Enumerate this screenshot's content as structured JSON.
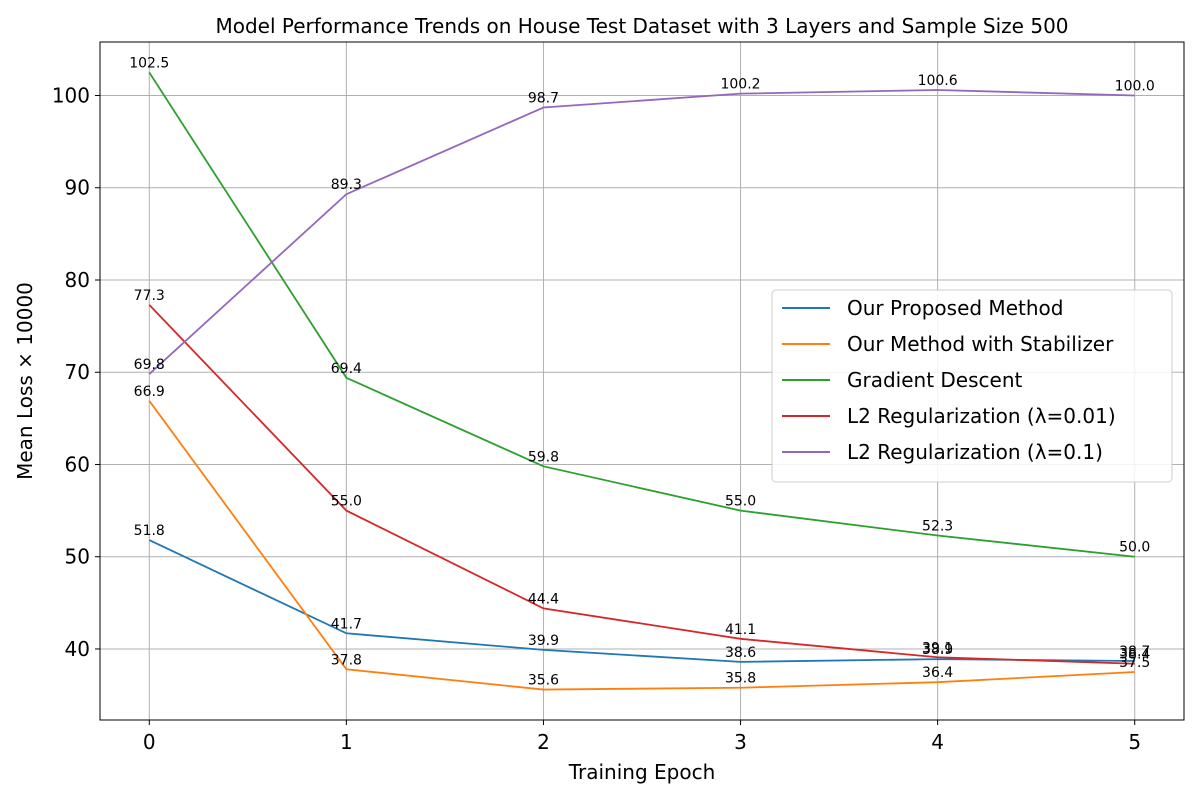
{
  "chart_data": {
    "type": "line",
    "title": "Model Performance Trends on House Test Dataset with 3 Layers and Sample Size 500",
    "xlabel": "Training Epoch",
    "ylabel": "Mean Loss × 10000",
    "x": [
      0,
      1,
      2,
      3,
      4,
      5
    ],
    "xlim": [
      -0.25,
      5.25
    ],
    "ylim": [
      32.3,
      105.8
    ],
    "xticks": [
      "0",
      "1",
      "2",
      "3",
      "4",
      "5"
    ],
    "yticks": [
      40,
      50,
      60,
      70,
      80,
      90,
      100
    ],
    "grid": true,
    "legend_position": "center-right",
    "series": [
      {
        "name": "Our Proposed Method",
        "color": "#1f77b4",
        "values": [
          51.8,
          41.7,
          39.9,
          38.6,
          38.9,
          38.7
        ],
        "labels": [
          "51.8",
          "41.7",
          "39.9",
          "38.6",
          "38.9",
          "38.7"
        ]
      },
      {
        "name": "Our Method with Stabilizer",
        "color": "#ff7f0e",
        "values": [
          66.9,
          37.8,
          35.6,
          35.8,
          36.4,
          37.5
        ],
        "labels": [
          "66.9",
          "37.8",
          "35.6",
          "35.8",
          "36.4",
          "37.5"
        ]
      },
      {
        "name": "Gradient Descent",
        "color": "#2ca02c",
        "values": [
          102.5,
          69.4,
          59.8,
          55.0,
          52.3,
          50.0
        ],
        "labels": [
          "102.5",
          "69.4",
          "59.8",
          "55.0",
          "52.3",
          "50.0"
        ]
      },
      {
        "name": "L2 Regularization (λ=0.01)",
        "color": "#d62728",
        "values": [
          77.3,
          55.0,
          44.4,
          41.1,
          39.1,
          38.4
        ],
        "labels": [
          "77.3",
          "55.0",
          "44.4",
          "41.1",
          "39.1",
          "38.4"
        ]
      },
      {
        "name": "L2 Regularization (λ=0.1)",
        "color": "#9467bd",
        "values": [
          69.8,
          89.3,
          98.7,
          100.2,
          100.6,
          100.0
        ],
        "labels": [
          "69.8",
          "89.3",
          "98.7",
          "100.2",
          "100.6",
          "100.0"
        ]
      }
    ]
  }
}
